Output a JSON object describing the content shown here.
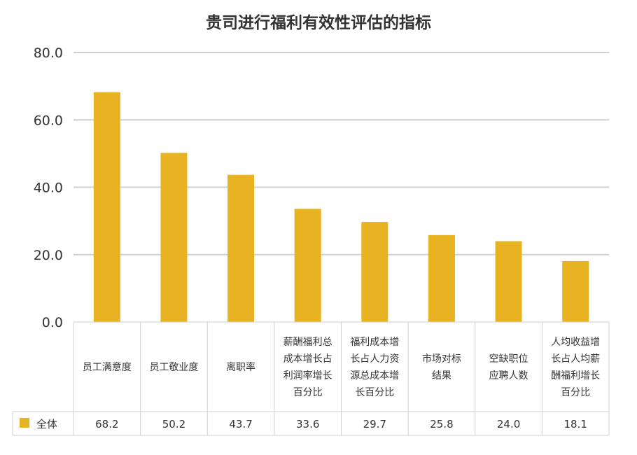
{
  "chart_data": {
    "type": "bar",
    "title": "贵司进行福利有效性评估的指标",
    "categories": [
      "员工满意度",
      "员工敬业度",
      "离职率",
      "薪酬福利总成本增长占利润率增长百分比",
      "福利成本增长占人力资源总成本增长百分比",
      "市场对标结果",
      "空缺职位应聘人数",
      "人均收益增长占人均薪酬福利增长百分比"
    ],
    "category_lines": [
      [
        "员工满意度"
      ],
      [
        "员工敬业度"
      ],
      [
        "离职率"
      ],
      [
        "薪酬福利总",
        "成本增长占",
        "利润率增长",
        "百分比"
      ],
      [
        "福利成本增",
        "长占人力资",
        "源总成本增",
        "长百分比"
      ],
      [
        "市场对标",
        "结果"
      ],
      [
        "空缺职位",
        "应聘人数"
      ],
      [
        "人均收益增",
        "长占人均薪",
        "酬福利增长",
        "百分比"
      ]
    ],
    "series": [
      {
        "name": "全体",
        "values": [
          68.2,
          50.2,
          43.7,
          33.6,
          29.7,
          25.8,
          24.0,
          18.1
        ],
        "labels": [
          "68.2",
          "50.2",
          "43.7",
          "33.6",
          "29.7",
          "25.8",
          "24.0",
          "18.1"
        ]
      }
    ],
    "ylim": [
      0,
      80
    ],
    "yticks": [
      0,
      20,
      40,
      60,
      80
    ],
    "ytick_labels": [
      "0.0",
      "20.0",
      "40.0",
      "60.0",
      "80.0"
    ],
    "xlabel": "",
    "ylabel": "",
    "grid": true,
    "legend": "bottom-left data table",
    "colors": {
      "bar": "#E8B323",
      "grid": "#d0d0d0",
      "table_border": "#d0d0d0"
    }
  }
}
